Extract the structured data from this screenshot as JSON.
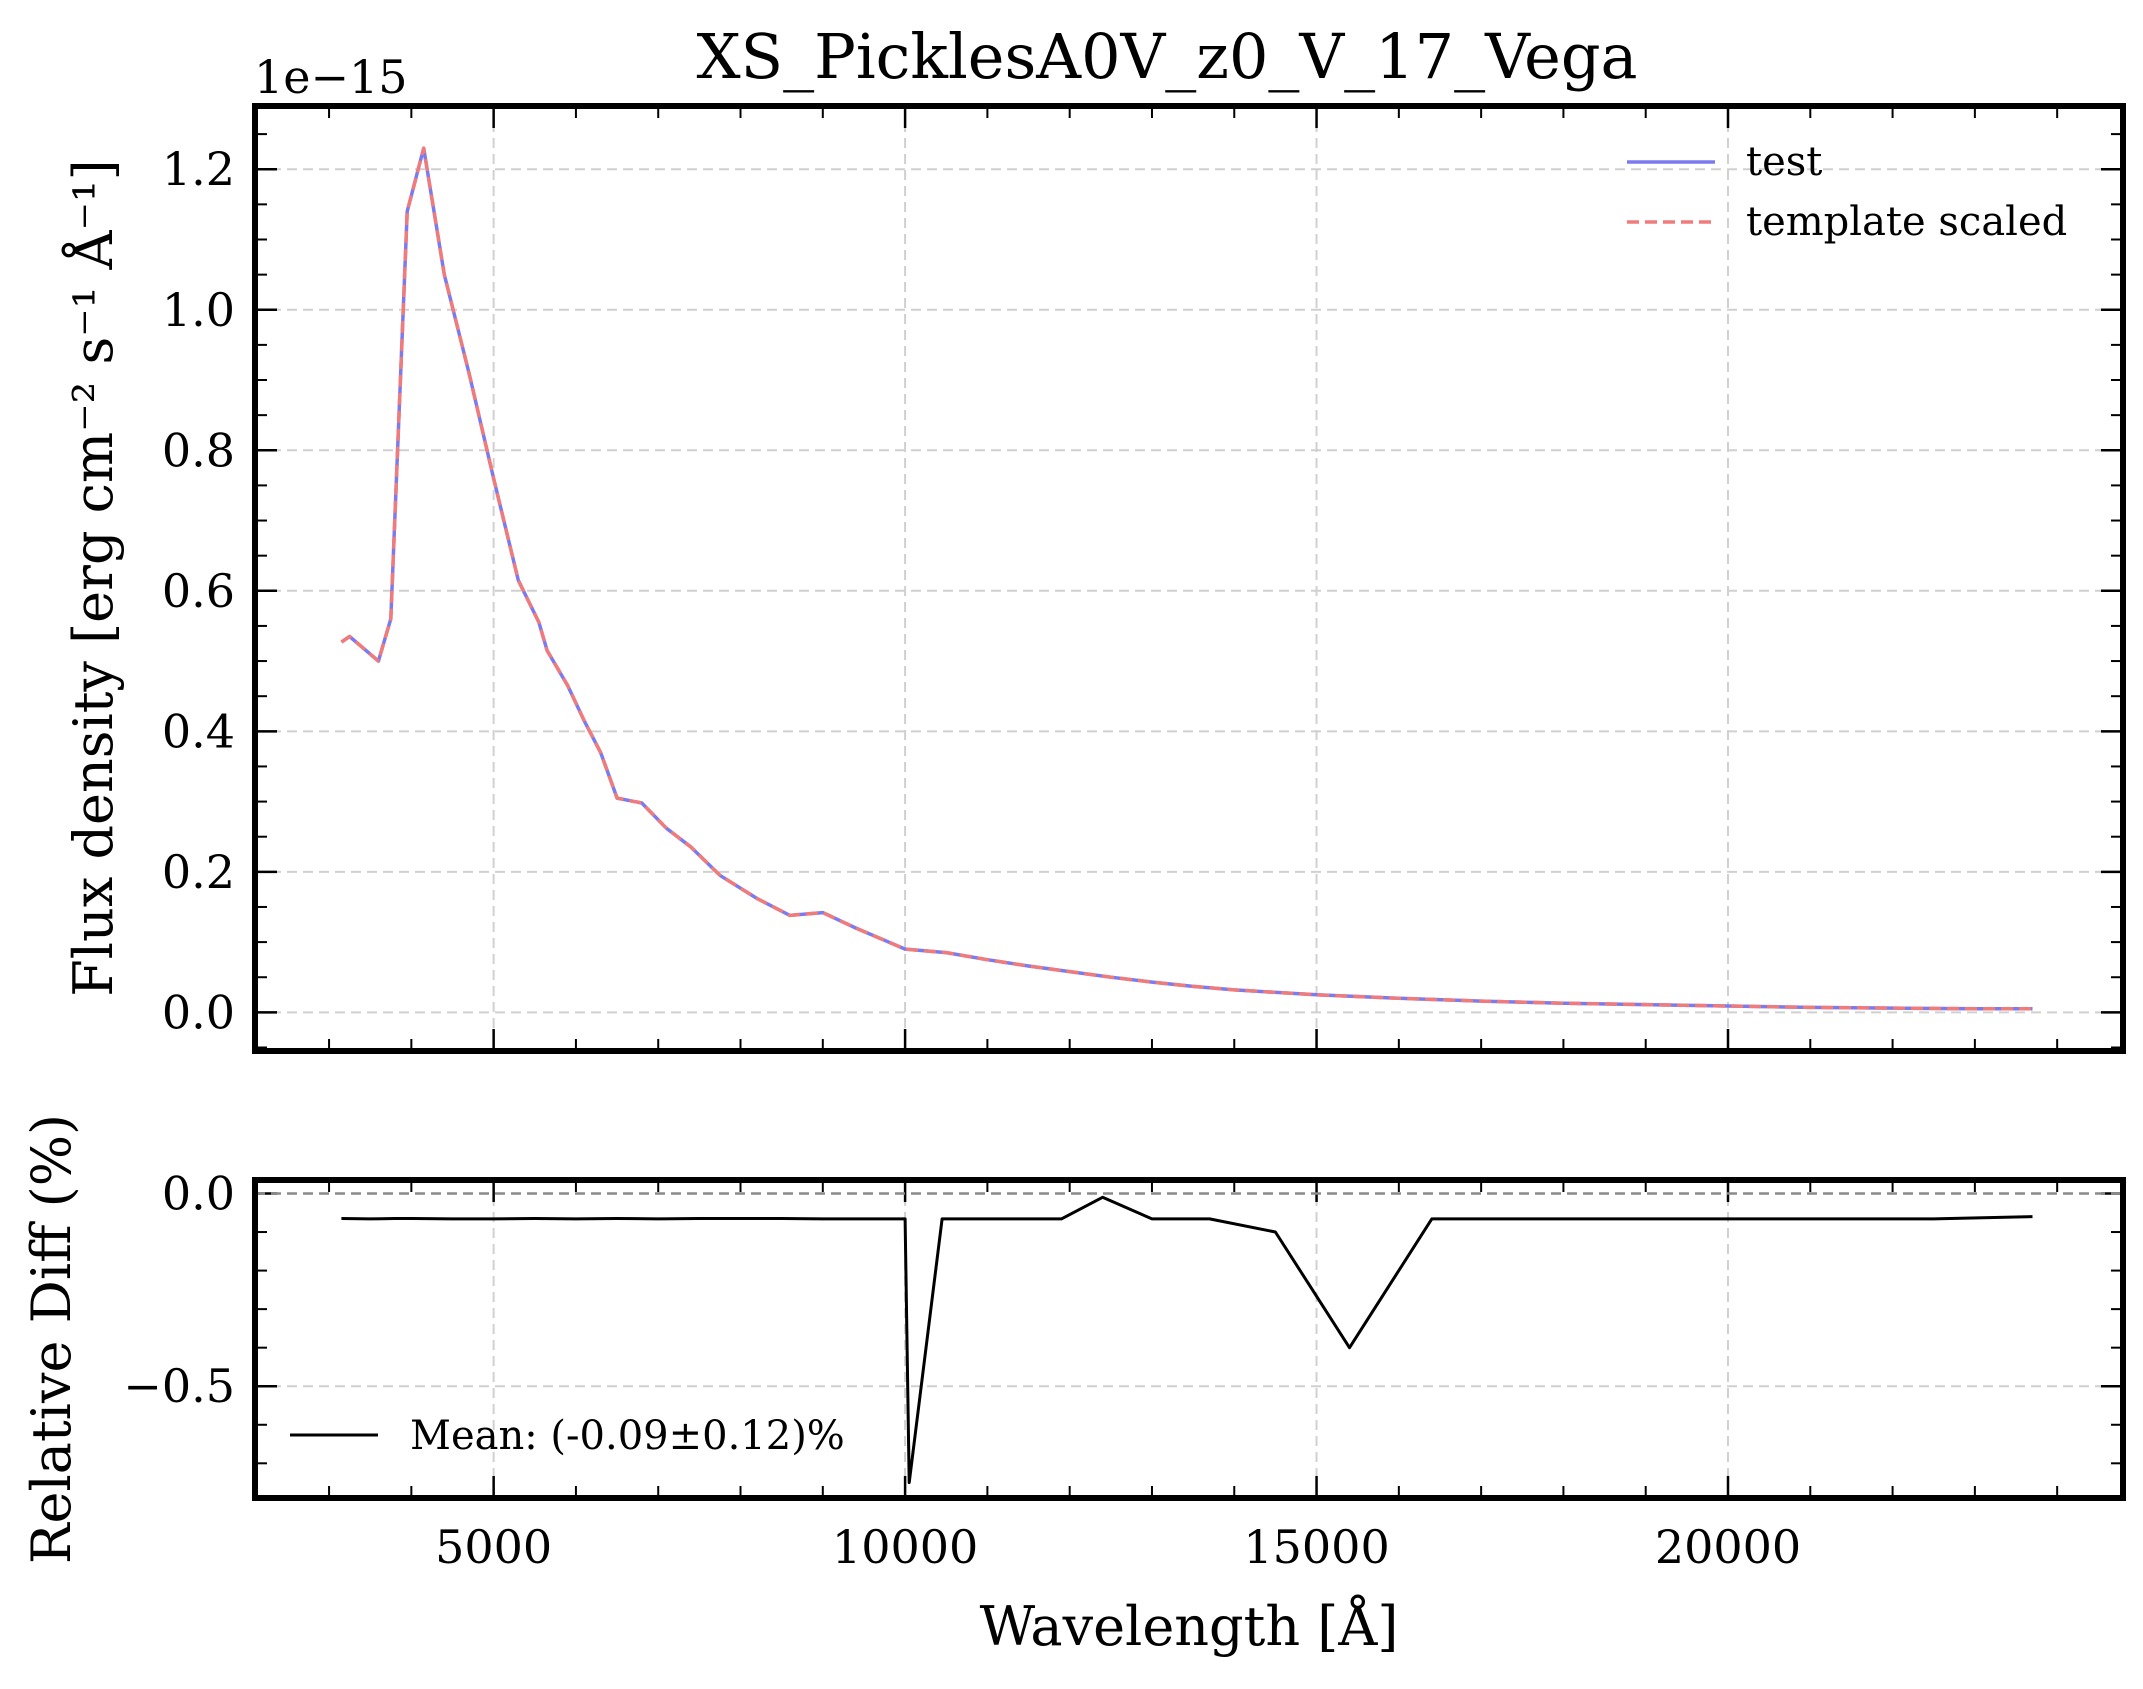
{
  "chart_data": [
    {
      "id": "top",
      "type": "line",
      "title": "XS_PicklesA0V_z0_V_17_Vega",
      "xlabel": "",
      "ylabel": "Flux density [erg cm⁻² s⁻¹ Å⁻¹]",
      "offset_text": "1e−15",
      "xlim": [
        2100,
        24800
      ],
      "ylim": [
        -0.055,
        1.29
      ],
      "y_scale_factor": 1e-15,
      "yticks": [
        0.0,
        0.2,
        0.4,
        0.6,
        0.8,
        1.0,
        1.2
      ],
      "ytick_labels": [
        "0.0",
        "0.2",
        "0.4",
        "0.6",
        "0.8",
        "1.0",
        "1.2"
      ],
      "xticks": [
        5000,
        10000,
        15000,
        20000
      ],
      "grid": true,
      "legend": {
        "position": "top-right",
        "entries": [
          {
            "label": "test",
            "color": "#7b7bf0",
            "style": "solid"
          },
          {
            "label": "template scaled",
            "color": "#f07b7b",
            "style": "dashed"
          }
        ]
      },
      "x": [
        3150,
        3250,
        3600,
        3750,
        3950,
        4150,
        4400,
        4700,
        5000,
        5300,
        5550,
        5650,
        5900,
        6100,
        6300,
        6500,
        6800,
        7100,
        7400,
        7750,
        8200,
        8600,
        9000,
        9400,
        10000,
        10500,
        11000,
        11500,
        12000,
        12500,
        13000,
        13500,
        14000,
        15000,
        16000,
        17000,
        18000,
        19000,
        20000,
        21000,
        22000,
        23000,
        23700
      ],
      "series": [
        {
          "name": "test",
          "color": "#7b7bf0",
          "values": [
            0.527,
            0.535,
            0.5,
            0.56,
            1.14,
            1.23,
            1.05,
            0.91,
            0.76,
            0.615,
            0.555,
            0.515,
            0.465,
            0.415,
            0.37,
            0.305,
            0.298,
            0.262,
            0.235,
            0.195,
            0.162,
            0.138,
            0.142,
            0.12,
            0.09,
            0.085,
            0.075,
            0.066,
            0.058,
            0.05,
            0.043,
            0.037,
            0.032,
            0.025,
            0.02,
            0.016,
            0.013,
            0.011,
            0.009,
            0.007,
            0.006,
            0.005,
            0.005
          ]
        },
        {
          "name": "template scaled",
          "color": "#f07b7b",
          "values": [
            0.527,
            0.535,
            0.5,
            0.56,
            1.14,
            1.23,
            1.05,
            0.91,
            0.76,
            0.615,
            0.555,
            0.515,
            0.465,
            0.415,
            0.37,
            0.305,
            0.298,
            0.262,
            0.235,
            0.195,
            0.162,
            0.138,
            0.142,
            0.12,
            0.09,
            0.085,
            0.075,
            0.066,
            0.058,
            0.05,
            0.043,
            0.037,
            0.032,
            0.025,
            0.02,
            0.016,
            0.013,
            0.011,
            0.009,
            0.007,
            0.006,
            0.005,
            0.005
          ]
        }
      ]
    },
    {
      "id": "bottom",
      "type": "line",
      "xlabel": "Wavelength [Å]",
      "ylabel": "Relative Diff (%)",
      "xlim": [
        2100,
        24800
      ],
      "ylim": [
        -0.79,
        0.035
      ],
      "yticks": [
        0.0,
        -0.5
      ],
      "ytick_labels": [
        "0.0",
        "−0.5"
      ],
      "xticks": [
        5000,
        10000,
        15000,
        20000
      ],
      "xtick_labels": [
        "5000",
        "10000",
        "15000",
        "20000"
      ],
      "grid": true,
      "reference_line": 0.0,
      "legend": {
        "position": "bottom-left",
        "entries": [
          {
            "label": "Mean: (-0.09±0.12)%",
            "color": "#000000",
            "style": "solid"
          }
        ]
      },
      "x": [
        3150,
        3500,
        3800,
        4000,
        4500,
        5000,
        5500,
        6000,
        6500,
        7000,
        7500,
        8000,
        8500,
        9000,
        9500,
        10000,
        10050,
        10450,
        11000,
        11500,
        11900,
        12400,
        13000,
        13700,
        14500,
        15400,
        16400,
        17500,
        18500,
        19500,
        20500,
        21500,
        22500,
        23700
      ],
      "series": [
        {
          "name": "",
          "color": "#000000",
          "values": [
            -0.065,
            -0.066,
            -0.065,
            -0.065,
            -0.066,
            -0.066,
            -0.065,
            -0.066,
            -0.065,
            -0.066,
            -0.065,
            -0.065,
            -0.065,
            -0.066,
            -0.066,
            -0.066,
            -0.75,
            -0.066,
            -0.066,
            -0.066,
            -0.066,
            -0.01,
            -0.066,
            -0.066,
            -0.1,
            -0.4,
            -0.066,
            -0.066,
            -0.066,
            -0.066,
            -0.066,
            -0.066,
            -0.066,
            -0.06
          ]
        }
      ]
    }
  ]
}
